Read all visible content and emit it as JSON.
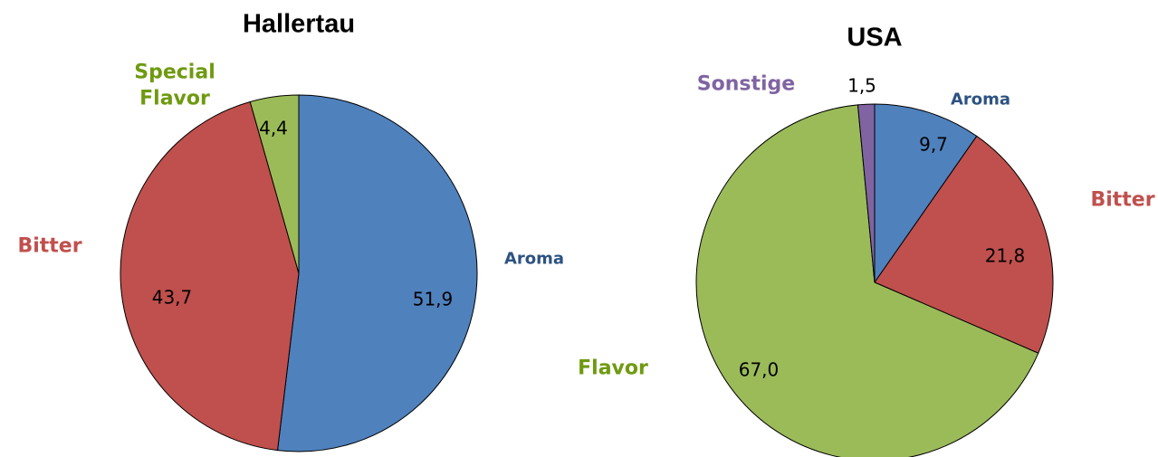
{
  "chart_data": [
    {
      "type": "pie",
      "title": "Hallertau",
      "categories": [
        "Aroma",
        "Bitter",
        "Special Flavor"
      ],
      "values": [
        51.9,
        43.7,
        4.4
      ],
      "value_labels": [
        "51,9",
        "43,7",
        "4,4"
      ],
      "colors": [
        "#4f81bd",
        "#c0504d",
        "#9bbb59"
      ],
      "label_colors": [
        "#2c5282",
        "#c0504d",
        "#6f9a10"
      ]
    },
    {
      "type": "pie",
      "title": "USA",
      "categories": [
        "Aroma",
        "Bitter",
        "Flavor",
        "Sonstige"
      ],
      "values": [
        9.7,
        21.8,
        67.0,
        1.5
      ],
      "value_labels": [
        "9,7",
        "21,8",
        "67,0",
        "1,5"
      ],
      "colors": [
        "#4f81bd",
        "#c0504d",
        "#9bbb59",
        "#8064a2"
      ],
      "label_colors": [
        "#2c5282",
        "#c0504d",
        "#6f9a10",
        "#8064a2"
      ]
    }
  ]
}
